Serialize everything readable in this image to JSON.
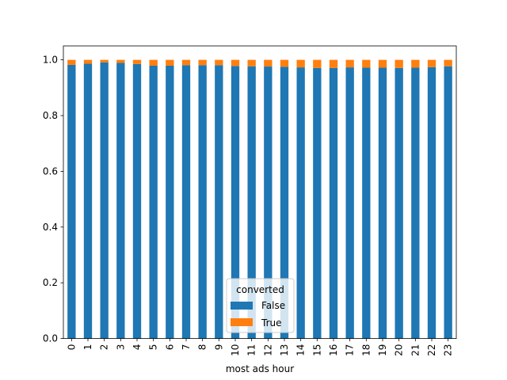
{
  "chart_data": {
    "type": "bar",
    "stacked": true,
    "title": "",
    "xlabel": "most ads hour",
    "ylabel": "",
    "ylim": [
      0,
      1.05
    ],
    "yticks": [
      0.0,
      0.2,
      0.4,
      0.6,
      0.8,
      1.0
    ],
    "ytick_labels": [
      "0.0",
      "0.2",
      "0.4",
      "0.6",
      "0.8",
      "1.0"
    ],
    "categories": [
      "0",
      "1",
      "2",
      "3",
      "4",
      "5",
      "6",
      "7",
      "8",
      "9",
      "10",
      "11",
      "12",
      "13",
      "14",
      "15",
      "16",
      "17",
      "18",
      "19",
      "20",
      "21",
      "22",
      "23"
    ],
    "series": [
      {
        "name": "False",
        "color": "#1f77b4",
        "values": [
          0.982,
          0.986,
          0.991,
          0.989,
          0.985,
          0.979,
          0.979,
          0.981,
          0.981,
          0.981,
          0.978,
          0.977,
          0.976,
          0.975,
          0.973,
          0.971,
          0.971,
          0.973,
          0.972,
          0.972,
          0.971,
          0.972,
          0.974,
          0.977
        ]
      },
      {
        "name": "True",
        "color": "#ff7f0e",
        "values": [
          0.018,
          0.014,
          0.009,
          0.011,
          0.015,
          0.021,
          0.021,
          0.019,
          0.019,
          0.019,
          0.022,
          0.023,
          0.024,
          0.025,
          0.027,
          0.029,
          0.029,
          0.027,
          0.028,
          0.028,
          0.029,
          0.028,
          0.026,
          0.023
        ]
      }
    ],
    "legend": {
      "title": "converted",
      "placement": "lower-center",
      "entries": [
        "False",
        "True"
      ]
    }
  }
}
